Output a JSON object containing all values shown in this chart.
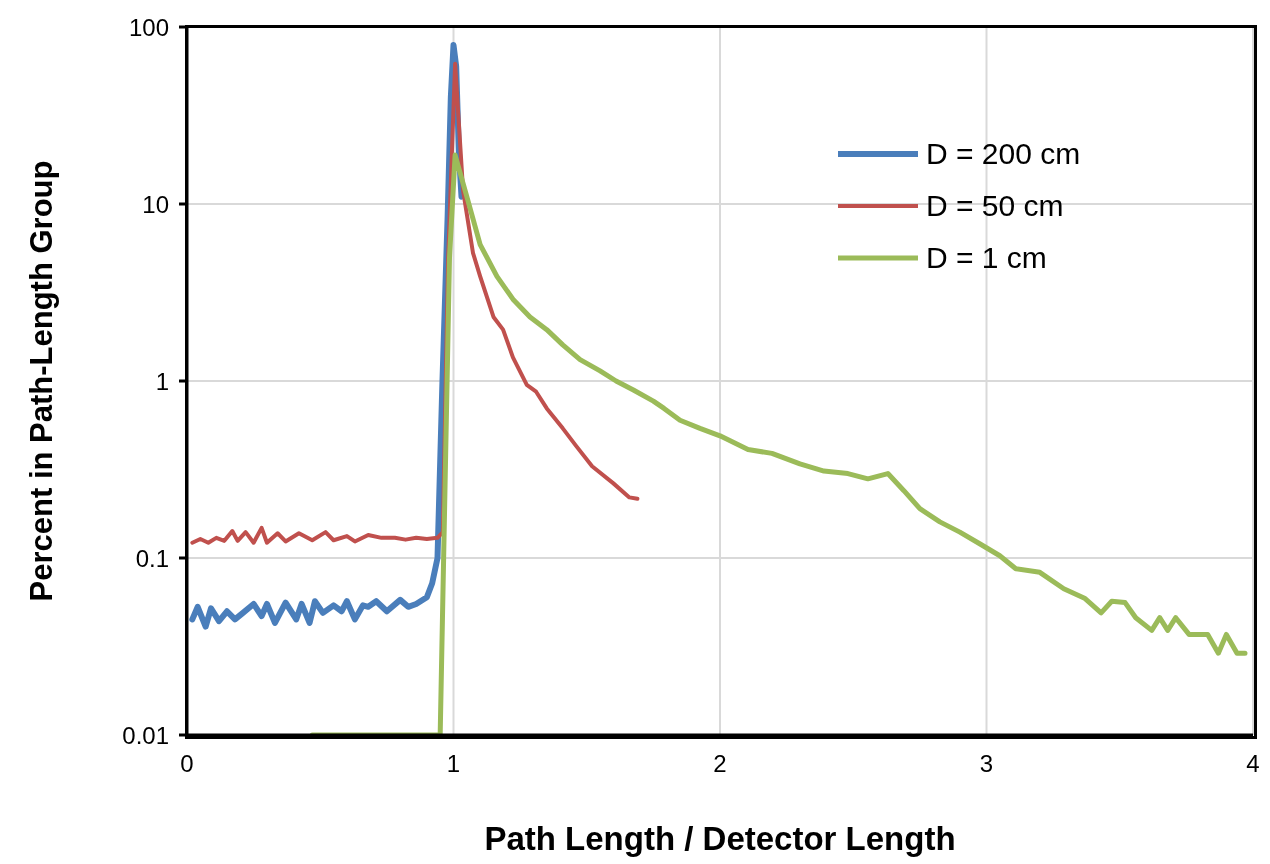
{
  "chart_data": {
    "type": "line",
    "xlabel": "Path Length / Detector Length",
    "ylabel": "Percent in Path-Length Group",
    "xlim": [
      0,
      4
    ],
    "xticks": [
      0,
      1,
      2,
      3,
      4
    ],
    "ylim": [
      0.01,
      100
    ],
    "yticks": [
      0.01,
      0.1,
      1,
      10,
      100
    ],
    "log": "y",
    "grid": true,
    "legend": "top right",
    "marker": "none",
    "line_style": "solid",
    "series": [
      {
        "name": "D = 200 cm",
        "color": "#4a7ebb",
        "x": [
          0.02,
          0.04,
          0.07,
          0.09,
          0.12,
          0.15,
          0.18,
          0.21,
          0.25,
          0.28,
          0.3,
          0.33,
          0.37,
          0.41,
          0.43,
          0.46,
          0.48,
          0.51,
          0.55,
          0.58,
          0.6,
          0.63,
          0.66,
          0.68,
          0.71,
          0.75,
          0.8,
          0.83,
          0.86,
          0.9,
          0.92,
          0.94,
          0.958,
          0.978,
          0.99,
          1.0,
          1.01,
          1.02,
          1.03
        ],
        "values": [
          0.045,
          0.053,
          0.041,
          0.052,
          0.044,
          0.05,
          0.045,
          0.049,
          0.055,
          0.047,
          0.055,
          0.043,
          0.056,
          0.045,
          0.055,
          0.043,
          0.057,
          0.049,
          0.054,
          0.05,
          0.057,
          0.045,
          0.054,
          0.053,
          0.057,
          0.05,
          0.058,
          0.053,
          0.055,
          0.06,
          0.072,
          0.1,
          0.93,
          8.5,
          40,
          79,
          60,
          20,
          11
        ]
      },
      {
        "name": "D = 50 cm",
        "color": "#c0504d",
        "x": [
          0.02,
          0.05,
          0.08,
          0.11,
          0.14,
          0.17,
          0.19,
          0.22,
          0.25,
          0.28,
          0.3,
          0.34,
          0.37,
          0.42,
          0.47,
          0.52,
          0.55,
          0.6,
          0.63,
          0.68,
          0.73,
          0.78,
          0.82,
          0.86,
          0.9,
          0.94,
          0.96,
          0.98,
          1.006,
          1.036,
          1.073,
          1.1,
          1.15,
          1.186,
          1.223,
          1.275,
          1.31,
          1.35,
          1.41,
          1.46,
          1.52,
          1.6,
          1.66,
          1.69
        ],
        "values": [
          0.122,
          0.128,
          0.122,
          0.13,
          0.125,
          0.142,
          0.125,
          0.14,
          0.122,
          0.148,
          0.122,
          0.138,
          0.124,
          0.138,
          0.126,
          0.14,
          0.126,
          0.133,
          0.124,
          0.135,
          0.13,
          0.13,
          0.127,
          0.13,
          0.128,
          0.13,
          0.14,
          5,
          62,
          11.9,
          5.3,
          3.9,
          2.3,
          1.95,
          1.36,
          0.95,
          0.87,
          0.7,
          0.54,
          0.43,
          0.33,
          0.264,
          0.22,
          0.216
        ]
      },
      {
        "name": "D = 1 cm",
        "color": "#9bbb59",
        "x": [
          0.47,
          0.95,
          0.985,
          1.006,
          1.05,
          1.1,
          1.163,
          1.223,
          1.287,
          1.35,
          1.41,
          1.475,
          1.55,
          1.61,
          1.675,
          1.75,
          1.79,
          1.85,
          1.925,
          2.0,
          2.105,
          2.195,
          2.3,
          2.39,
          2.48,
          2.555,
          2.63,
          2.69,
          2.75,
          2.825,
          2.9,
          2.976,
          3.05,
          3.11,
          3.2,
          3.29,
          3.37,
          3.43,
          3.47,
          3.52,
          3.56,
          3.62,
          3.65,
          3.68,
          3.71,
          3.76,
          3.83,
          3.87,
          3.9,
          3.94,
          3.97
        ],
        "values": [
          0.01,
          0.01,
          5,
          18.9,
          11,
          5.9,
          3.9,
          2.9,
          2.3,
          1.95,
          1.6,
          1.32,
          1.14,
          1.0,
          0.89,
          0.77,
          0.7,
          0.6,
          0.54,
          0.49,
          0.41,
          0.39,
          0.34,
          0.31,
          0.3,
          0.28,
          0.3,
          0.24,
          0.19,
          0.16,
          0.14,
          0.12,
          0.103,
          0.087,
          0.083,
          0.067,
          0.059,
          0.049,
          0.057,
          0.056,
          0.046,
          0.039,
          0.046,
          0.039,
          0.046,
          0.037,
          0.037,
          0.029,
          0.037,
          0.029,
          0.029
        ]
      }
    ]
  }
}
